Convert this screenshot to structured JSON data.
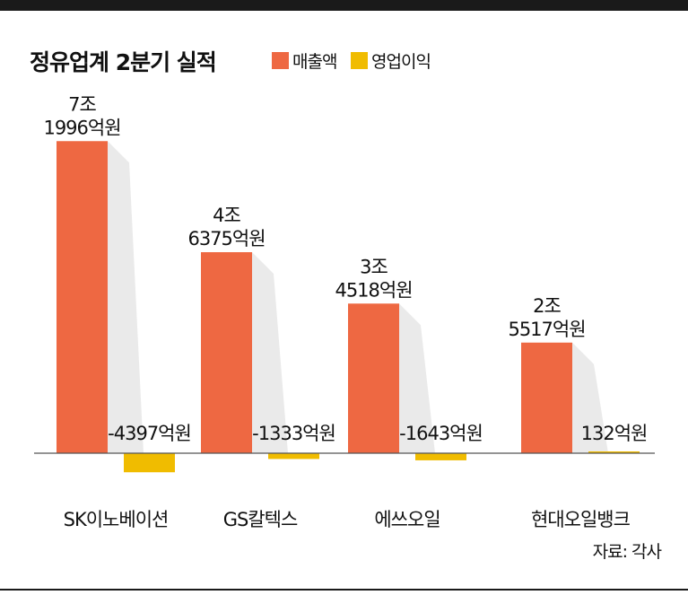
{
  "title": "정유업계 2분기 실적",
  "source": "자료: 각사",
  "colors": {
    "sales": "#ee6842",
    "profit": "#f0bc00",
    "baseline": "#555555",
    "shadow": "#d9d9d9"
  },
  "chart_data": {
    "type": "bar",
    "title": "정유업계 2분기 실적",
    "unit": "억원",
    "categories": [
      "SK이노베이션",
      "GS칼텍스",
      "에쓰오일",
      "현대오일뱅크"
    ],
    "series": [
      {
        "name": "매출액",
        "values": [
          71996,
          46375,
          34518,
          25517
        ],
        "labels": [
          [
            "7조",
            "1996억원"
          ],
          [
            "4조",
            "6375억원"
          ],
          [
            "3조",
            "4518억원"
          ],
          [
            "2조",
            "5517억원"
          ]
        ]
      },
      {
        "name": "영업이익",
        "values": [
          -4397,
          -1333,
          -1643,
          132
        ],
        "labels": [
          "-4397억원",
          "-1333억원",
          "-1643억원",
          "132억원"
        ]
      }
    ],
    "legend": "top"
  }
}
